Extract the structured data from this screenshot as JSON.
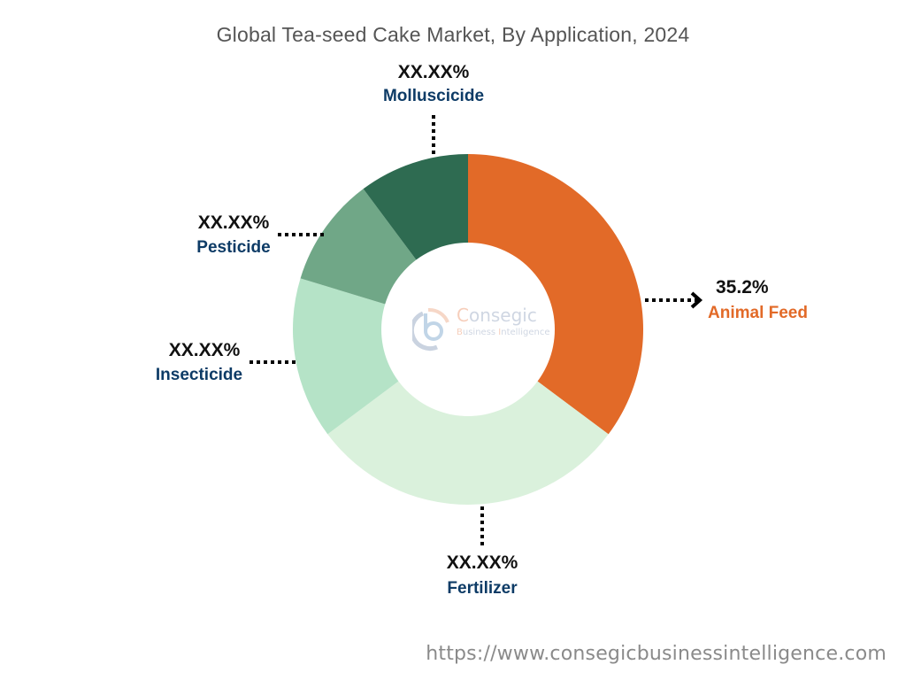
{
  "title": "Global Tea-seed Cake Market, By Application, 2024",
  "footer_url": "https://www.consegicbusinessintelligence.com",
  "watermark": {
    "line1_initial": "C",
    "line1_rest": "onsegic",
    "line2_initial1": "B",
    "line2_mid": "usiness ",
    "line2_initial2": "I",
    "line2_rest": "ntelligence"
  },
  "labels": {
    "animal_feed": {
      "pct": "35.2%",
      "name": "Animal Feed"
    },
    "fertilizer": {
      "pct": "XX.XX%",
      "name": "Fertilizer"
    },
    "insecticide": {
      "pct": "XX.XX%",
      "name": "Insecticide"
    },
    "pesticide": {
      "pct": "XX.XX%",
      "name": "Pesticide"
    },
    "molluscicide": {
      "pct": "XX.XX%",
      "name": "Molluscicide"
    }
  },
  "colors": {
    "animal_feed": "#e26a28",
    "fertilizer": "#daf1dc",
    "insecticide": "#b5e3c7",
    "pesticide": "#70a787",
    "molluscicide": "#2e6b51",
    "label_text": "#0d3b66",
    "highlight_label": "#e26a28"
  },
  "chart_data": {
    "type": "pie",
    "subtype": "donut",
    "title": "Global Tea-seed Cake Market, By Application, 2024",
    "categories": [
      "Animal Feed",
      "Fertilizer",
      "Insecticide",
      "Pesticide",
      "Molluscicide"
    ],
    "values": [
      35.2,
      29.6,
      14.9,
      10.1,
      10.2
    ],
    "value_labels": [
      "35.2%",
      "XX.XX%",
      "XX.XX%",
      "XX.XX%",
      "XX.XX%"
    ],
    "start_angle_deg": 0,
    "direction": "clockwise",
    "legend": "none (direct labels with dotted leader lines)",
    "note": "Only Animal Feed value shown; other values estimated from slice angles"
  }
}
